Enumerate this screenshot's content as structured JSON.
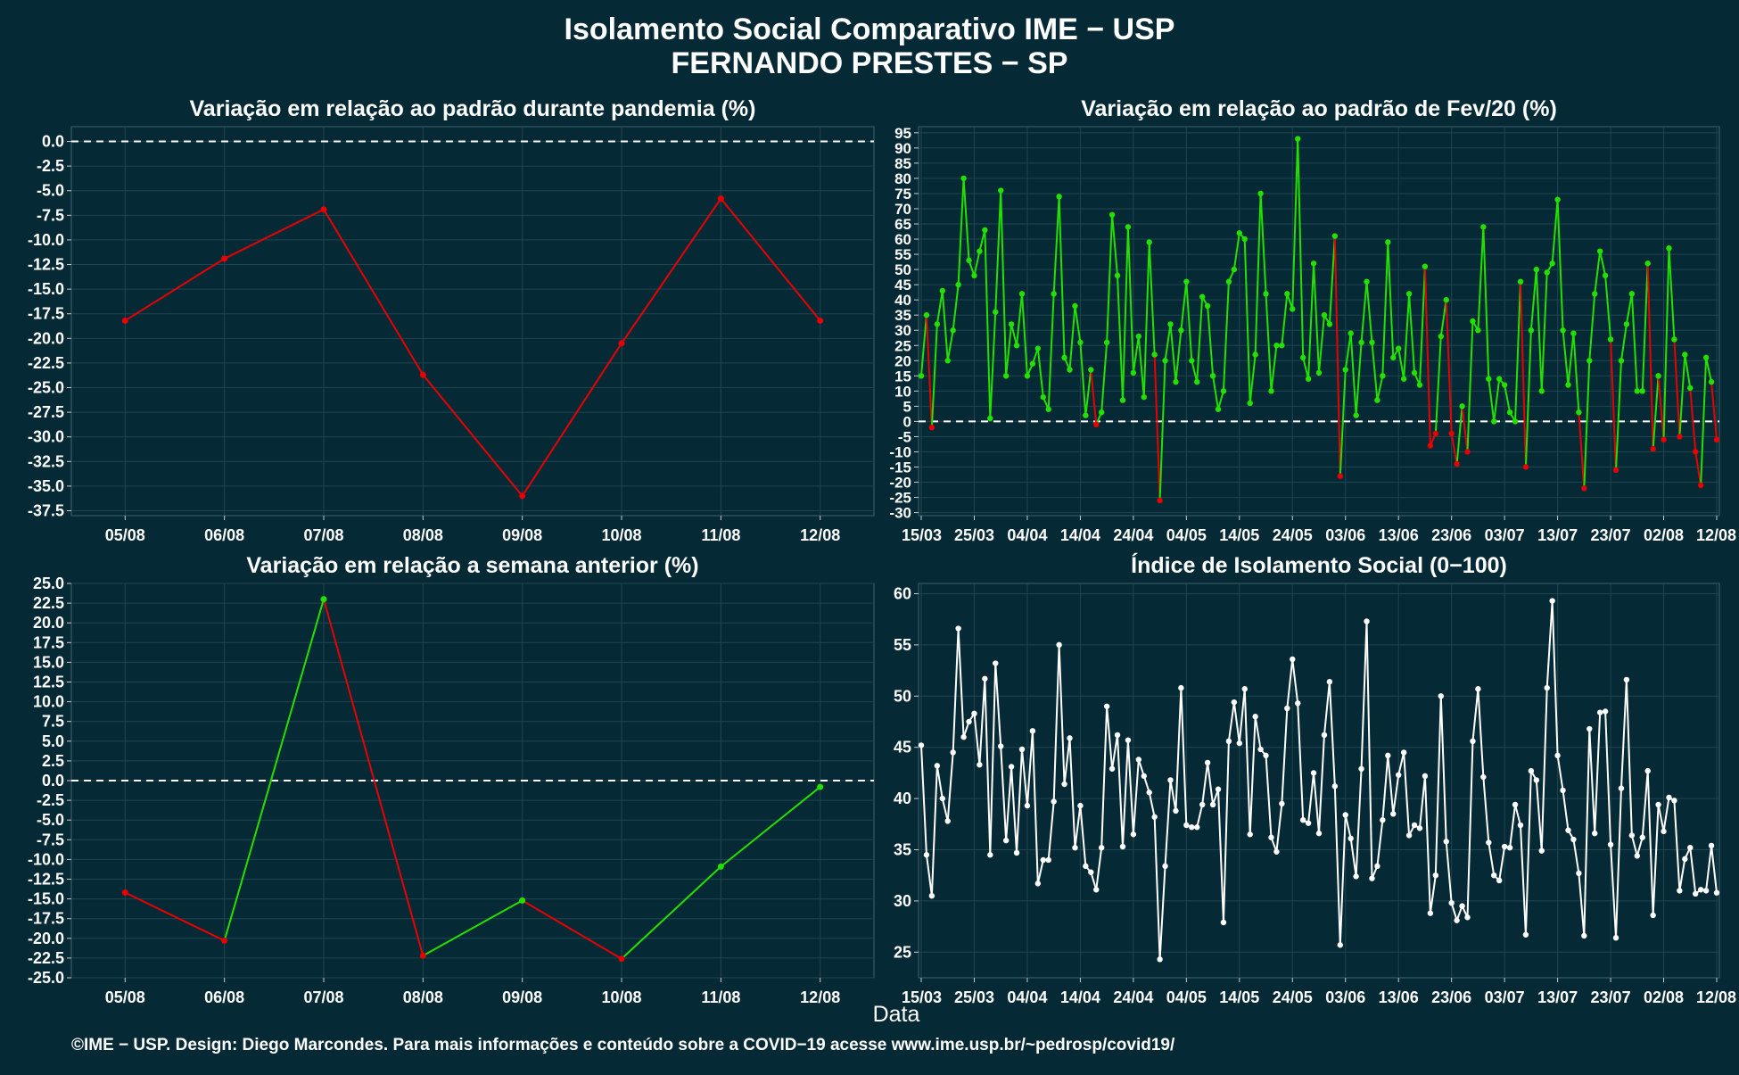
{
  "title_line1": "Isolamento Social Comparativo IME − USP",
  "title_line2": "FERNANDO PRESTES − SP",
  "xlabel": "Data",
  "footer": "©IME − USP. Design: Diego Marcondes. Para mais informações e conteúdo sobre a COVID−19 acesse www.ime.usp.br/~pedrosp/covid19/",
  "colors": {
    "background": "#062a35",
    "positive": "#22e000",
    "negative": "#e80000",
    "neutral": "#ffffff",
    "grid": "#1f4550"
  },
  "chart_data": [
    {
      "id": "pandemia",
      "type": "line",
      "title": "Variação em relação ao padrão durante pandemia (%)",
      "categories": [
        "05/08",
        "06/08",
        "07/08",
        "08/08",
        "09/08",
        "10/08",
        "11/08",
        "12/08"
      ],
      "values": [
        -18.2,
        -11.9,
        -6.9,
        -23.7,
        -36.0,
        -20.5,
        -5.8,
        -18.2
      ],
      "ylim": [
        -38,
        1.5
      ],
      "yticks": [
        "0.0",
        "-2.5",
        "-5.0",
        "-7.5",
        "-10.0",
        "-12.5",
        "-15.0",
        "-17.5",
        "-20.0",
        "-22.5",
        "-25.0",
        "-27.5",
        "-30.0",
        "-32.5",
        "-35.0",
        "-37.5"
      ],
      "color_rule": "all-negative",
      "grid": true
    },
    {
      "id": "fev20",
      "type": "line",
      "title": "Variação em relação ao padrão de Fev/20 (%)",
      "x_labels": [
        "15/03",
        "25/03",
        "04/04",
        "14/04",
        "24/04",
        "04/05",
        "14/05",
        "24/05",
        "03/06",
        "13/06",
        "23/06",
        "03/07",
        "13/07",
        "23/07",
        "02/08",
        "12/08"
      ],
      "x_range": [
        "15/03",
        "12/08"
      ],
      "values": [
        15,
        35,
        -2,
        32,
        43,
        20,
        30,
        45,
        80,
        53,
        48,
        56,
        63,
        1,
        36,
        76,
        15,
        32,
        25,
        42,
        15,
        19,
        24,
        8,
        4,
        42,
        74,
        21,
        17,
        38,
        26,
        2,
        17,
        -1,
        3,
        26,
        68,
        48,
        7,
        64,
        16,
        28,
        8,
        59,
        22,
        -26,
        20,
        32,
        13,
        30,
        46,
        20,
        13,
        41,
        38,
        15,
        4,
        10,
        46,
        50,
        62,
        60,
        6,
        22,
        75,
        42,
        10,
        25,
        25,
        42,
        37,
        93,
        21,
        14,
        52,
        16,
        35,
        32,
        61,
        -18,
        17,
        29,
        2,
        26,
        46,
        26,
        7,
        15,
        59,
        21,
        24,
        14,
        42,
        16,
        12,
        51,
        -8,
        -4,
        28,
        40,
        -4,
        -14,
        5,
        -10,
        33,
        30,
        64,
        14,
        0,
        14,
        12,
        3,
        0,
        46,
        -15,
        30,
        50,
        10,
        49,
        52,
        73,
        30,
        12,
        29,
        3,
        -22,
        20,
        42,
        56,
        48,
        27,
        -16,
        20,
        32,
        42,
        10,
        10,
        52,
        -9,
        15,
        -6,
        57,
        27,
        -5,
        22,
        11,
        -10,
        -21,
        21,
        13,
        -6
      ],
      "ylim": [
        -31,
        97
      ],
      "yticks": [
        95,
        90,
        85,
        80,
        75,
        70,
        65,
        60,
        55,
        50,
        45,
        40,
        35,
        30,
        25,
        20,
        15,
        10,
        5,
        0,
        -5,
        -10,
        -15,
        -20,
        -25,
        -30
      ],
      "color_rule": "positive-green-negative-red",
      "grid": true
    },
    {
      "id": "semana",
      "type": "line",
      "title": "Variação em relação a semana anterior (%)",
      "categories": [
        "05/08",
        "06/08",
        "07/08",
        "08/08",
        "09/08",
        "10/08",
        "11/08",
        "12/08"
      ],
      "values": [
        -14.2,
        -20.3,
        23.0,
        -22.2,
        -15.2,
        -22.6,
        -10.9,
        -0.8
      ],
      "ylim": [
        -25,
        25
      ],
      "yticks": [
        "25.0",
        "22.5",
        "20.0",
        "17.5",
        "15.0",
        "12.5",
        "10.0",
        "7.5",
        "5.0",
        "2.5",
        "0.0",
        "-2.5",
        "-5.0",
        "-7.5",
        "-10.0",
        "-12.5",
        "-15.0",
        "-17.5",
        "-20.0",
        "-22.5",
        "-25.0"
      ],
      "color_rule": "increase-green-decrease-red",
      "grid": true
    },
    {
      "id": "indice",
      "type": "line",
      "title": "Índice de Isolamento Social (0−100)",
      "x_labels": [
        "15/03",
        "25/03",
        "04/04",
        "14/04",
        "24/04",
        "04/05",
        "14/05",
        "24/05",
        "03/06",
        "13/06",
        "23/06",
        "03/07",
        "13/07",
        "23/07",
        "02/08",
        "12/08"
      ],
      "x_range": [
        "15/03",
        "12/08"
      ],
      "values": [
        45.2,
        34.5,
        30.5,
        43.2,
        40,
        37.8,
        44.5,
        56.6,
        46,
        47.5,
        48.3,
        43.3,
        51.7,
        34.5,
        53.2,
        45.1,
        35.9,
        43.1,
        34.7,
        44.8,
        39.3,
        46.6,
        31.7,
        34,
        34,
        39.7,
        55,
        41.4,
        45.9,
        35.2,
        39.3,
        33.4,
        32.8,
        31.1,
        35.2,
        49,
        42.9,
        46.2,
        35.3,
        45.7,
        36.5,
        43.8,
        42.2,
        40.6,
        38.2,
        24.3,
        33.4,
        41.8,
        38.8,
        50.8,
        37.4,
        37.2,
        37.2,
        39.4,
        43.5,
        39.4,
        40.9,
        27.9,
        45.6,
        49.4,
        45.4,
        50.7,
        36.5,
        48,
        44.8,
        44.2,
        36.2,
        34.8,
        39.5,
        48.8,
        53.6,
        49.3,
        37.9,
        37.6,
        42.5,
        36.6,
        46.2,
        51.4,
        41.2,
        25.7,
        38.4,
        36.1,
        32.4,
        42.9,
        57.3,
        32.2,
        33.4,
        37.9,
        44.2,
        38.5,
        42.3,
        44.5,
        36.4,
        37.4,
        37.1,
        42.2,
        28.8,
        32.5,
        50,
        35.8,
        29.8,
        28.1,
        29.5,
        28.4,
        45.6,
        50.7,
        42.1,
        35.7,
        32.5,
        32,
        35.3,
        35.2,
        39.4,
        37.4,
        26.7,
        42.7,
        41.8,
        34.9,
        50.8,
        59.3,
        44.2,
        40.8,
        36.9,
        36,
        32.7,
        26.6,
        46.8,
        36.6,
        48.4,
        48.5,
        35.5,
        26.4,
        41,
        51.6,
        36.4,
        34.4,
        36.2,
        42.7,
        28.6,
        39.4,
        36.8,
        40.1,
        39.8,
        31,
        34.1,
        35.2,
        30.7,
        31.1,
        31,
        35.4,
        30.8
      ],
      "ylim": [
        22.5,
        61
      ],
      "yticks": [
        60,
        55,
        50,
        45,
        40,
        35,
        30,
        25
      ],
      "color_rule": "white",
      "grid": true
    }
  ]
}
